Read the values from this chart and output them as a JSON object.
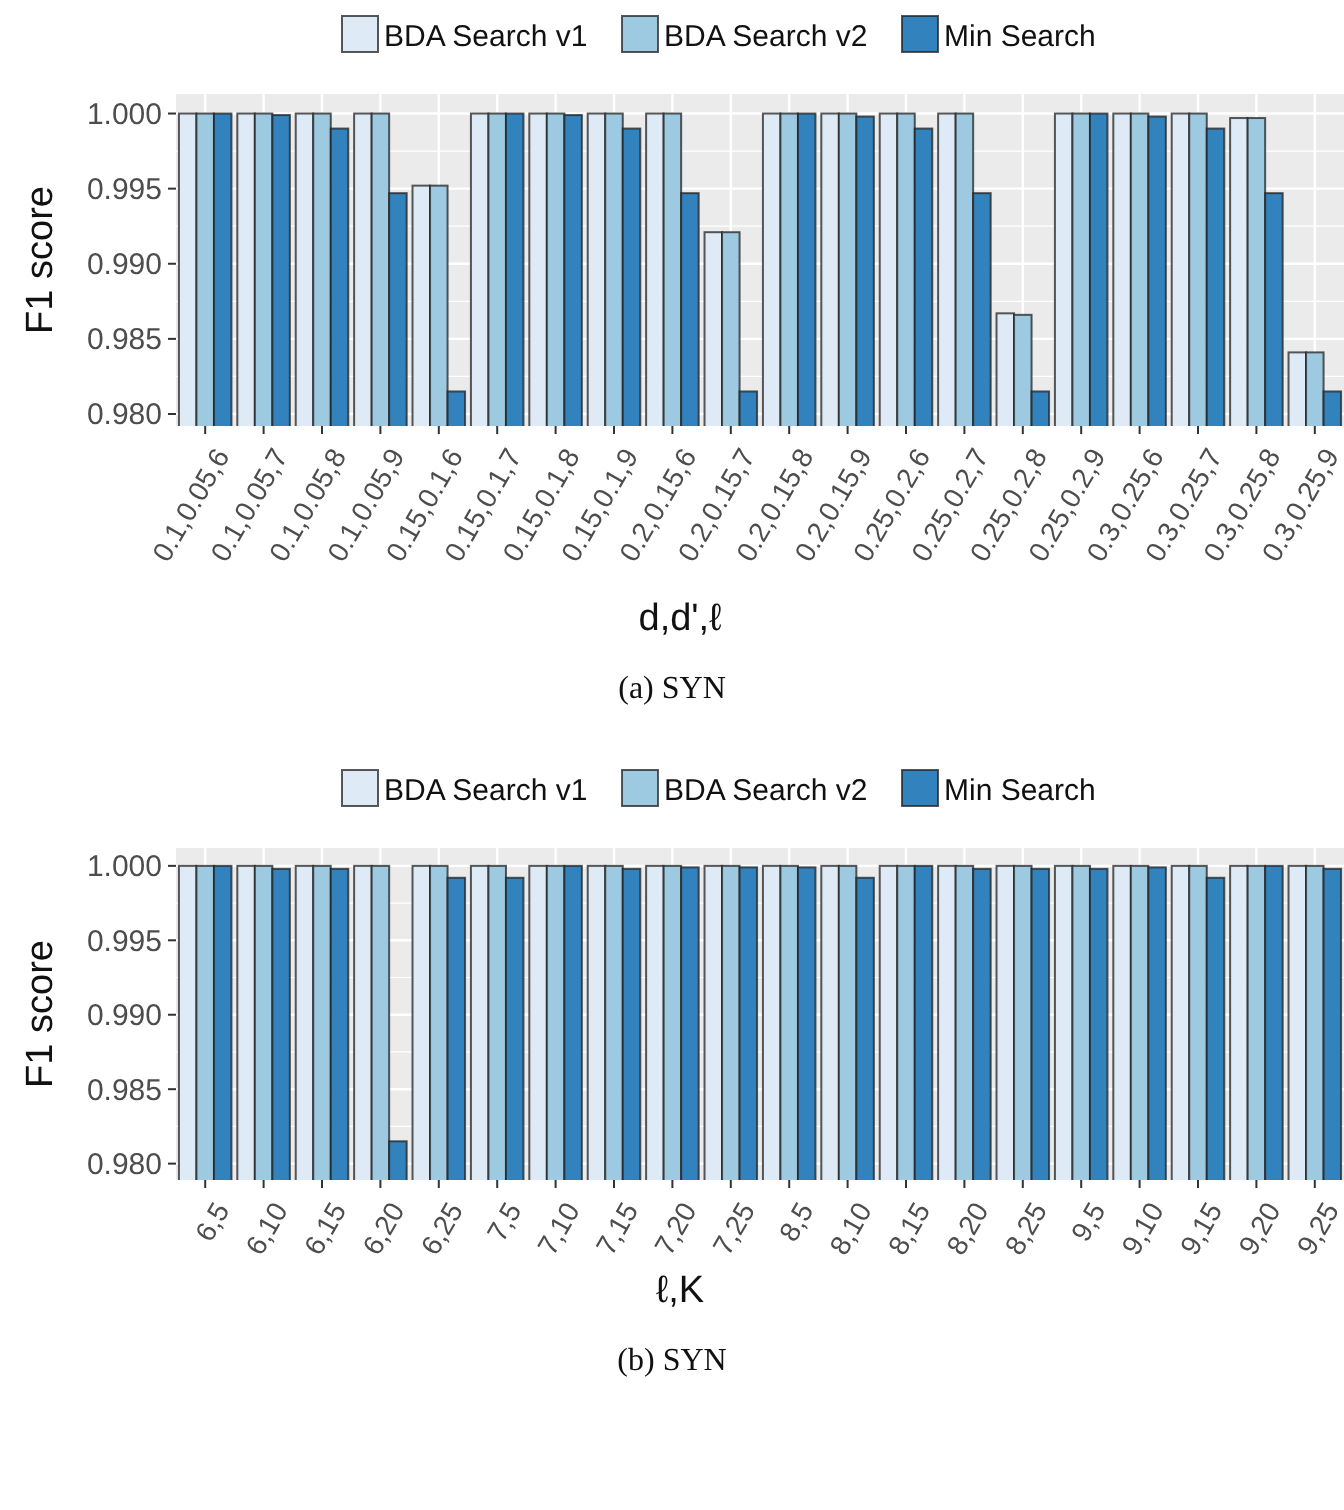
{
  "chart_data": [
    {
      "type": "bar",
      "xlabel": "d,d',ℓ",
      "ylabel": "F1 score",
      "annotations": [
        "(a) SYN"
      ],
      "legend": "top",
      "grid": true,
      "categories": [
        "0.1,0.05,6",
        "0.1,0.05,7",
        "0.1,0.05,8",
        "0.1,0.05,9",
        "0.15,0.1,6",
        "0.15,0.1,7",
        "0.15,0.1,8",
        "0.15,0.1,9",
        "0.2,0.15,6",
        "0.2,0.15,7",
        "0.2,0.15,8",
        "0.2,0.15,9",
        "0.25,0.2,6",
        "0.25,0.2,7",
        "0.25,0.2,8",
        "0.25,0.2,9",
        "0.3,0.25,6",
        "0.3,0.25,7",
        "0.3,0.25,8",
        "0.3,0.25,9"
      ],
      "ylim": [
        0.9792,
        1.0013
      ],
      "yticks": [
        {
          "value": 0.98,
          "label": "0.980"
        },
        {
          "value": 0.985,
          "label": "0.985"
        },
        {
          "value": 0.99,
          "label": "0.990"
        },
        {
          "value": 0.995,
          "label": "0.995"
        },
        {
          "value": 1,
          "label": "1.000"
        }
      ],
      "series": [
        {
          "name": "BDA Search v1",
          "color": "#deebf7",
          "values": [
            1,
            1,
            1,
            1,
            0.9952,
            1,
            1,
            1,
            1,
            0.9921,
            1,
            1,
            1,
            1,
            0.9867,
            1,
            1,
            1,
            0.9997,
            0.9841
          ]
        },
        {
          "name": "BDA Search v2",
          "color": "#9ecae1",
          "values": [
            1,
            1,
            1,
            1,
            0.9952,
            1,
            1,
            1,
            1,
            0.9921,
            1,
            1,
            1,
            1,
            0.9866,
            1,
            1,
            1,
            0.9997,
            0.9841
          ]
        },
        {
          "name": "Min Search",
          "color": "#3182bd",
          "values": [
            1,
            0.9999,
            0.999,
            0.9947,
            0.9815,
            1,
            0.9999,
            0.999,
            0.9947,
            0.9815,
            1,
            0.9998,
            0.999,
            0.9947,
            0.9815,
            1,
            0.9998,
            0.999,
            0.9947,
            0.9815
          ]
        }
      ]
    },
    {
      "type": "bar",
      "xlabel": "ℓ,K",
      "ylabel": "F1 score",
      "annotations": [
        "(b) SYN"
      ],
      "legend": "top",
      "grid": true,
      "categories": [
        "6,5",
        "6,10",
        "6,15",
        "6,20",
        "6,25",
        "7,5",
        "7,10",
        "7,15",
        "7,20",
        "7,25",
        "8,5",
        "8,10",
        "8,15",
        "8,20",
        "8,25",
        "9,5",
        "9,10",
        "9,15",
        "9,20",
        "9,25"
      ],
      "ylim": [
        0.9789,
        1.0012
      ],
      "yticks": [
        {
          "value": 0.98,
          "label": "0.980"
        },
        {
          "value": 0.985,
          "label": "0.985"
        },
        {
          "value": 0.99,
          "label": "0.990"
        },
        {
          "value": 0.995,
          "label": "0.995"
        },
        {
          "value": 1,
          "label": "1.000"
        }
      ],
      "series": [
        {
          "name": "BDA Search v1",
          "color": "#deebf7",
          "values": [
            1,
            1,
            1,
            1,
            1,
            1,
            1,
            1,
            1,
            1,
            1,
            1,
            1,
            1,
            1,
            1,
            1,
            1,
            1,
            1
          ]
        },
        {
          "name": "BDA Search v2",
          "color": "#9ecae1",
          "values": [
            1,
            1,
            1,
            1,
            1,
            1,
            1,
            1,
            1,
            1,
            1,
            1,
            1,
            1,
            1,
            1,
            1,
            1,
            1,
            1
          ]
        },
        {
          "name": "Min Search",
          "color": "#3182bd",
          "values": [
            1,
            0.9998,
            0.9998,
            0.9815,
            0.9992,
            0.9992,
            1,
            0.9998,
            0.9999,
            0.9999,
            0.9999,
            0.9992,
            1,
            0.9998,
            0.9998,
            0.9998,
            0.9999,
            0.9992,
            1,
            0.9998
          ]
        }
      ]
    }
  ]
}
